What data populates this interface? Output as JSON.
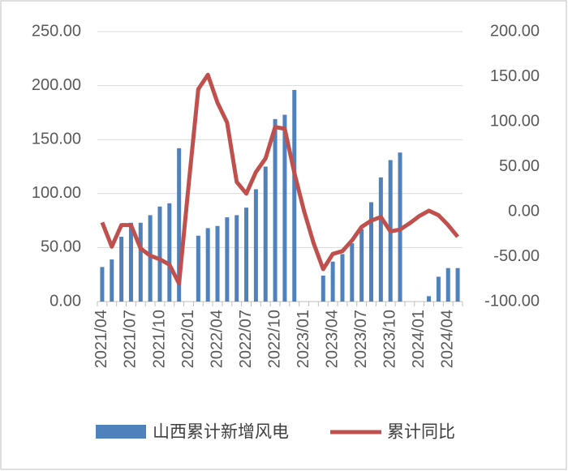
{
  "chart_data": {
    "type": "bar_line",
    "categories": [
      "2021/04",
      null,
      null,
      "2021/07",
      null,
      null,
      "2021/10",
      null,
      null,
      "2022/01",
      null,
      null,
      "2022/04",
      null,
      null,
      "2022/07",
      null,
      null,
      "2022/10",
      null,
      null,
      "2023/01",
      null,
      null,
      "2023/04",
      null,
      null,
      "2023/07",
      null,
      null,
      "2023/10",
      null,
      null,
      "2024/01",
      null,
      null,
      "2024/04",
      null
    ],
    "series": [
      {
        "name": "山西累计新增风电",
        "type": "bar",
        "color": "#4f81bd",
        "values": [
          32,
          39,
          60,
          73,
          73,
          80,
          88,
          91,
          142,
          null,
          61,
          68,
          70,
          78,
          80,
          87,
          104,
          125,
          169,
          173,
          196,
          null,
          null,
          24,
          37,
          44,
          54,
          67,
          92,
          115,
          131,
          138,
          null,
          null,
          5,
          23,
          31,
          31
        ]
      },
      {
        "name": "累计同比",
        "type": "line",
        "axis": "y2",
        "color": "#c0504d",
        "values": [
          -12,
          -39,
          -15,
          -15,
          -41,
          -49,
          -53,
          -59,
          -80,
          30,
          136,
          152,
          121,
          99,
          33,
          20,
          44,
          59,
          94,
          92,
          43,
          1,
          -35,
          -64,
          -47,
          -44,
          -32,
          -17,
          -10,
          -6,
          -22,
          -20,
          -13,
          -5,
          1,
          -4,
          -15,
          -28
        ]
      }
    ],
    "ylim": [
      0,
      250
    ],
    "yticks": [
      {
        "value": 0,
        "label": "0.00"
      },
      {
        "value": 50,
        "label": "50.00"
      },
      {
        "value": 100,
        "label": "100.00"
      },
      {
        "value": 150,
        "label": "150.00"
      },
      {
        "value": 200,
        "label": "200.00"
      },
      {
        "value": 250,
        "label": "250.00"
      }
    ],
    "y2lim": [
      -100,
      200
    ],
    "y2ticks": [
      {
        "value": -100,
        "label": "-100.00"
      },
      {
        "value": -50,
        "label": "-50.00"
      },
      {
        "value": 0,
        "label": "0.00"
      },
      {
        "value": 50,
        "label": "50.00"
      },
      {
        "value": 100,
        "label": "100.00"
      },
      {
        "value": 150,
        "label": "150.00"
      },
      {
        "value": 200,
        "label": "200.00"
      }
    ],
    "grid": true,
    "legend": "bottom"
  }
}
